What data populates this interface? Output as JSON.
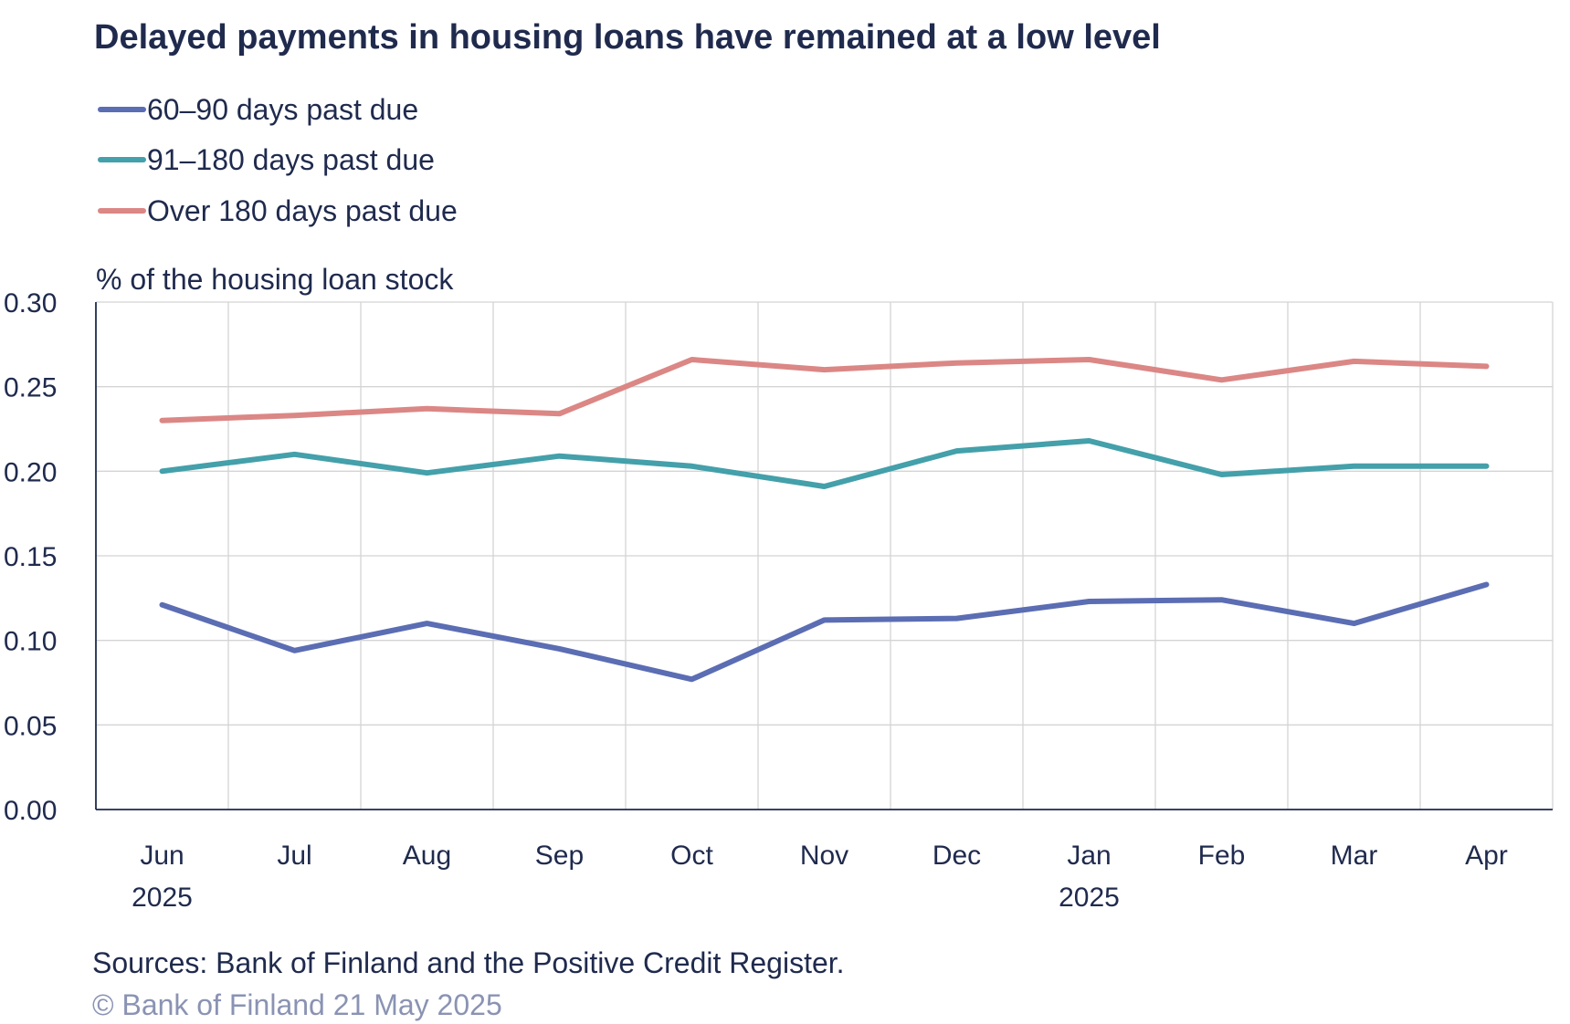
{
  "chart_data": {
    "type": "line",
    "title": "Delayed payments in housing loans have remained at a low level",
    "ylabel": "% of the housing loan stock",
    "ylim": [
      0,
      0.3
    ],
    "yticks": [
      "0.00",
      "0.05",
      "0.10",
      "0.15",
      "0.20",
      "0.25",
      "0.30"
    ],
    "categories": [
      "Jun",
      "Jul",
      "Aug",
      "Sep",
      "Oct",
      "Nov",
      "Dec",
      "Jan",
      "Feb",
      "Mar",
      "Apr"
    ],
    "year_labels": [
      "2025",
      "",
      "",
      "",
      "",
      "",
      "",
      "2025",
      "",
      "",
      ""
    ],
    "grid": true,
    "legend_position": "top-left",
    "series": [
      {
        "name": "60–90 days past due",
        "color": "#5b6db3",
        "values": [
          0.121,
          0.094,
          0.11,
          0.095,
          0.077,
          0.112,
          0.113,
          0.123,
          0.124,
          0.11,
          0.133
        ]
      },
      {
        "name": "91–180 days past due",
        "color": "#44a0aa",
        "values": [
          0.2,
          0.21,
          0.199,
          0.209,
          0.203,
          0.191,
          0.212,
          0.218,
          0.198,
          0.203,
          0.203
        ]
      },
      {
        "name": "Over 180 days past due",
        "color": "#db8785",
        "values": [
          0.23,
          0.233,
          0.237,
          0.234,
          0.266,
          0.26,
          0.264,
          0.266,
          0.254,
          0.265,
          0.262
        ]
      }
    ],
    "source": "Sources: Bank of Finland and the Positive Credit Register.",
    "copyright": "© Bank of Finland 21 May 2025"
  }
}
